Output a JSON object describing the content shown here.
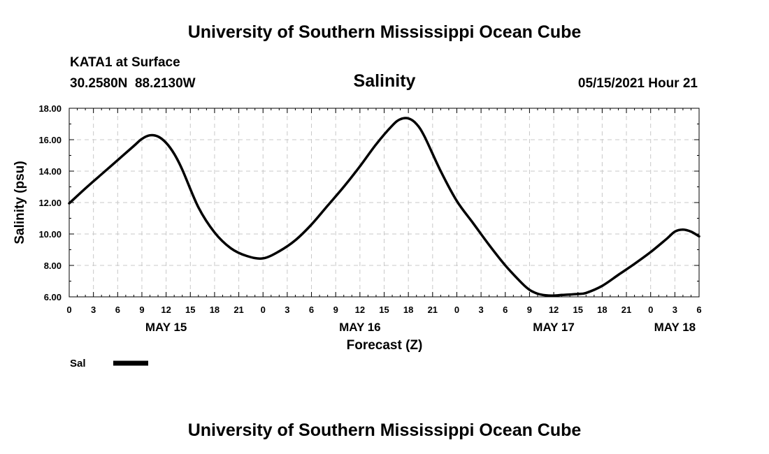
{
  "header": {
    "top_title": "University of Southern Mississippi Ocean Cube",
    "bottom_title": "University of Southern Mississippi Ocean Cube",
    "station": "KATA1 at Surface",
    "coords": "30.2580N  88.2130W",
    "timestamp": "05/15/2021 Hour 21"
  },
  "legend": {
    "label": "Sal"
  },
  "colors": {
    "line": "#000000",
    "grid": "#c8c8c8",
    "axis": "#000000"
  },
  "chart_data": {
    "type": "line",
    "title": "Salinity",
    "xlabel": "Forecast (Z)",
    "ylabel": "Salinity (psu)",
    "ylim": [
      6,
      18
    ],
    "yticks": [
      "6.00",
      "8.00",
      "10.00",
      "12.00",
      "14.00",
      "16.00",
      "18.00"
    ],
    "xlim": [
      0,
      78
    ],
    "x_unit": "hours since 00Z May 15",
    "xtick_labels": [
      "0",
      "3",
      "6",
      "9",
      "12",
      "15",
      "18",
      "21",
      "0",
      "3",
      "6",
      "9",
      "12",
      "15",
      "18",
      "21",
      "0",
      "3",
      "6",
      "9",
      "12",
      "15",
      "18",
      "21",
      "0",
      "3",
      "6"
    ],
    "day_labels": [
      {
        "label": "MAY 15",
        "x": 12
      },
      {
        "label": "MAY 16",
        "x": 36
      },
      {
        "label": "MAY 17",
        "x": 60
      },
      {
        "label": "MAY 18",
        "x": 75
      }
    ],
    "grid": true,
    "series": [
      {
        "name": "Sal",
        "x": [
          0,
          2,
          4,
          6,
          8,
          9,
          10,
          11,
          12,
          13,
          14,
          16,
          18,
          20,
          22,
          24,
          26,
          28,
          30,
          32,
          34,
          36,
          38,
          40,
          41,
          42,
          43,
          44,
          46,
          48,
          50,
          52,
          54,
          56,
          57,
          58,
          59,
          60,
          61,
          62,
          63,
          64,
          66,
          68,
          70,
          72,
          74,
          75,
          76,
          77,
          78
        ],
        "values": [
          11.95,
          12.9,
          13.8,
          14.7,
          15.6,
          16.05,
          16.28,
          16.2,
          15.8,
          15.1,
          14.1,
          11.7,
          10.1,
          9.1,
          8.6,
          8.45,
          8.9,
          9.6,
          10.6,
          11.8,
          13.0,
          14.3,
          15.7,
          16.9,
          17.3,
          17.35,
          17.0,
          16.2,
          14.0,
          12.1,
          10.7,
          9.3,
          8.0,
          6.9,
          6.45,
          6.2,
          6.1,
          6.08,
          6.12,
          6.15,
          6.18,
          6.25,
          6.7,
          7.4,
          8.1,
          8.85,
          9.7,
          10.15,
          10.28,
          10.15,
          9.85
        ]
      }
    ]
  }
}
